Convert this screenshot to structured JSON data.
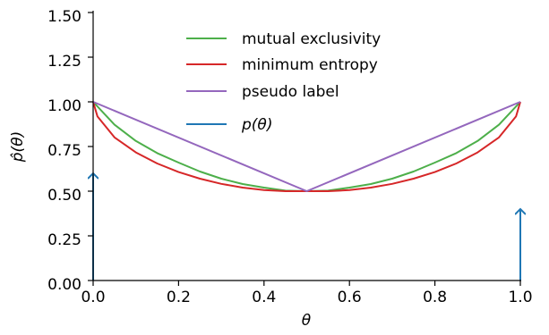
{
  "chart_data": {
    "type": "line",
    "title": "",
    "xlabel": "θ",
    "ylabel": "p̂(θ)",
    "xlim": [
      0.0,
      1.0
    ],
    "ylim": [
      0.0,
      1.5
    ],
    "xticks": [
      "0.0",
      "0.2",
      "0.4",
      "0.6",
      "0.8",
      "1.0"
    ],
    "yticks": [
      "0.00",
      "0.25",
      "0.50",
      "0.75",
      "1.00",
      "1.25",
      "1.50"
    ],
    "grid": false,
    "legend_position": "upper center",
    "series": [
      {
        "name": "mutual exclusivity",
        "color": "#4daf4a",
        "x": [
          0.0,
          0.05,
          0.1,
          0.15,
          0.2,
          0.25,
          0.3,
          0.35,
          0.4,
          0.45,
          0.5,
          0.55,
          0.6,
          0.65,
          0.7,
          0.75,
          0.8,
          0.85,
          0.9,
          0.95,
          1.0
        ],
        "values": [
          1.0,
          0.872,
          0.781,
          0.713,
          0.66,
          0.61,
          0.57,
          0.54,
          0.52,
          0.503,
          0.5,
          0.503,
          0.52,
          0.54,
          0.57,
          0.61,
          0.66,
          0.713,
          0.781,
          0.872,
          1.0
        ]
      },
      {
        "name": "minimum entropy",
        "color": "#d62728",
        "x": [
          0.0,
          0.01,
          0.05,
          0.1,
          0.15,
          0.2,
          0.25,
          0.3,
          0.35,
          0.4,
          0.45,
          0.5,
          0.55,
          0.6,
          0.65,
          0.7,
          0.75,
          0.8,
          0.85,
          0.9,
          0.95,
          0.99,
          1.0
        ],
        "values": [
          1.0,
          0.919,
          0.801,
          0.717,
          0.655,
          0.607,
          0.57,
          0.541,
          0.52,
          0.506,
          0.5,
          0.5,
          0.5,
          0.506,
          0.52,
          0.541,
          0.57,
          0.607,
          0.655,
          0.717,
          0.801,
          0.919,
          1.0
        ]
      },
      {
        "name": "pseudo label",
        "color": "#9467bd",
        "x": [
          0.0,
          0.5,
          1.0
        ],
        "values": [
          1.0,
          0.5,
          1.0
        ]
      }
    ],
    "arrows": {
      "name": "p(θ)",
      "color": "#1f77b4",
      "points": [
        {
          "x": 0.0,
          "height": 0.6
        },
        {
          "x": 1.0,
          "height": 0.4
        }
      ]
    }
  }
}
